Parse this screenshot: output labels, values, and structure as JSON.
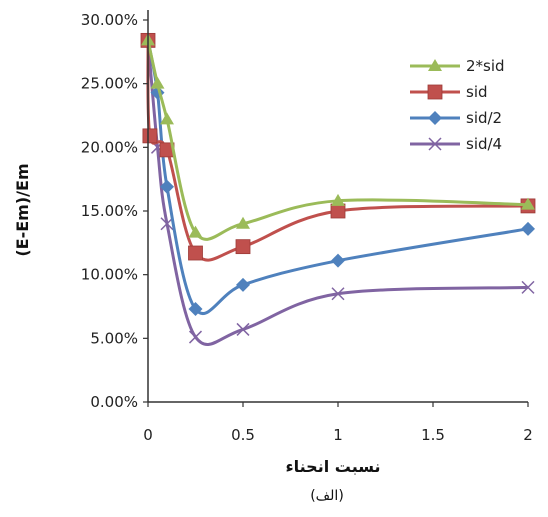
{
  "chart_data": {
    "type": "line",
    "title": "",
    "xlabel": "نسبت انحناء",
    "ylabel": "(E-Em)/Em",
    "caption": "(الف)",
    "xlim": [
      0,
      2
    ],
    "ylim": [
      0,
      0.3
    ],
    "x_ticks": [
      0,
      0.5,
      1,
      1.5,
      2
    ],
    "x_tick_labels": [
      "0",
      "0.5",
      "1",
      "1.5",
      "2"
    ],
    "y_ticks": [
      0,
      0.05,
      0.1,
      0.15,
      0.2,
      0.25,
      0.3
    ],
    "y_tick_labels": [
      "0.00%",
      "5.00%",
      "10.00%",
      "15.00%",
      "20.00%",
      "25.00%",
      "30.00%"
    ],
    "grid": false,
    "legend_position": "top-right",
    "series": [
      {
        "name": "2*sid",
        "color": "#9bbb59",
        "marker": "triangle",
        "x": [
          0,
          0.05,
          0.1,
          0.25,
          0.5,
          1,
          2
        ],
        "y": [
          0.284,
          0.25,
          0.222,
          0.133,
          0.14,
          0.158,
          0.155
        ]
      },
      {
        "name": "sid",
        "color": "#c0504d",
        "marker": "square",
        "x": [
          0,
          0.01,
          0.1,
          0.25,
          0.5,
          1,
          2
        ],
        "y": [
          0.284,
          0.209,
          0.198,
          0.117,
          0.122,
          0.15,
          0.154
        ]
      },
      {
        "name": "sid/2",
        "color": "#4f81bd",
        "marker": "diamond",
        "x": [
          0,
          0.05,
          0.1,
          0.25,
          0.5,
          1,
          2
        ],
        "y": [
          0.284,
          0.243,
          0.169,
          0.073,
          0.092,
          0.111,
          0.136
        ]
      },
      {
        "name": "sid/4",
        "color": "#8064a2",
        "marker": "x",
        "x": [
          0,
          0.05,
          0.1,
          0.25,
          0.5,
          1,
          2
        ],
        "y": [
          0.284,
          0.2,
          0.14,
          0.051,
          0.057,
          0.085,
          0.09
        ]
      }
    ]
  }
}
